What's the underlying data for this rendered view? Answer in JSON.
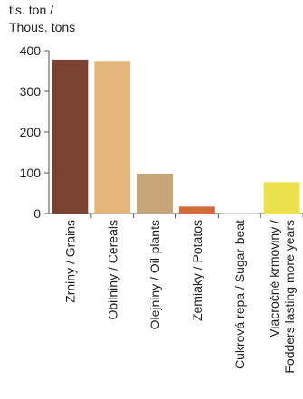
{
  "chart_data": {
    "type": "bar",
    "ylabel_lines": [
      "tis. ton /",
      "Thous. tons"
    ],
    "categories": [
      [
        "Zrniny / Grains"
      ],
      [
        "Obilniny / Cereals"
      ],
      [
        "Olejniny / Oil-plants"
      ],
      [
        "Zemiaky / Potatos"
      ],
      [
        "Cukrová repa / Sugar-beat"
      ],
      [
        "Viacročné krmoviny /",
        "Fodders lasting more years"
      ]
    ],
    "values": [
      378,
      375,
      98,
      17,
      1,
      77
    ],
    "colors": [
      "#7a4231",
      "#e3b67c",
      "#c6a57a",
      "#d46b3a",
      "#b0b0b0",
      "#ede04f"
    ],
    "ylim": [
      0,
      400
    ],
    "yticks": [
      0,
      100,
      200,
      300,
      400
    ],
    "grid": false,
    "legend": "none",
    "axis_color": "#555555"
  }
}
